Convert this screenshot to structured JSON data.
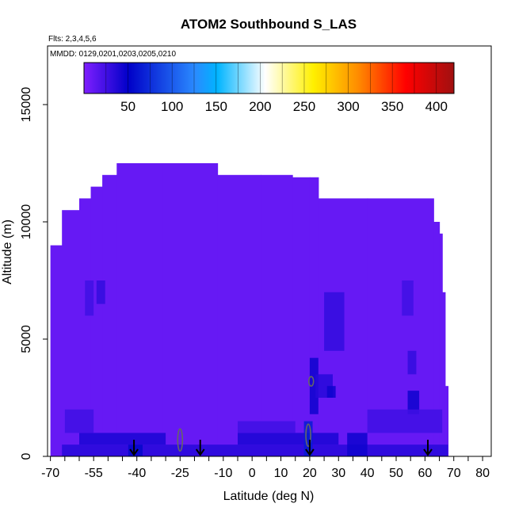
{
  "chart_data": {
    "type": "heatmap",
    "title": "ATOM2 Southbound S_LAS",
    "flights_label": "Flts: 2,3,4,5,6",
    "dates_label": "MMDD: 0129,0201,0203,0205,0210",
    "xlabel": "Latitude (deg N)",
    "ylabel": "Altitude (m)",
    "xlim": [
      -71,
      83
    ],
    "ylim": [
      0,
      17500
    ],
    "x_ticks": [
      -70,
      -55,
      -40,
      -25,
      -10,
      0,
      10,
      20,
      30,
      40,
      50,
      60,
      70,
      80
    ],
    "y_ticks": [
      0,
      5000,
      10000,
      15000
    ],
    "colorbar": {
      "range": [
        0,
        420
      ],
      "ticks": [
        50,
        100,
        150,
        200,
        250,
        300,
        350,
        400
      ],
      "colors": [
        "#7f1fff",
        "#0000c8",
        "#2a8aff",
        "#00b4ff",
        "#ffffff",
        "#fff000",
        "#ff8c00",
        "#ff0000",
        "#a01010"
      ],
      "color_stops": [
        0,
        0.12,
        0.3,
        0.36,
        0.49,
        0.62,
        0.74,
        0.87,
        1
      ]
    },
    "background_value": 10,
    "columns": [
      {
        "lat_range": [
          -70,
          -66
        ],
        "top_alt": 9000
      },
      {
        "lat_range": [
          -66,
          -60
        ],
        "top_alt": 10500
      },
      {
        "lat_range": [
          -60,
          -56
        ],
        "top_alt": 11000
      },
      {
        "lat_range": [
          -56,
          -52
        ],
        "top_alt": 11500
      },
      {
        "lat_range": [
          -52,
          -47
        ],
        "top_alt": 12000
      },
      {
        "lat_range": [
          -47,
          -31
        ],
        "top_alt": 12500
      },
      {
        "lat_range": [
          -31,
          -12
        ],
        "top_alt": 12500
      },
      {
        "lat_range": [
          -12,
          3
        ],
        "top_alt": 12000
      },
      {
        "lat_range": [
          3,
          14
        ],
        "top_alt": 12000
      },
      {
        "lat_range": [
          14,
          20
        ],
        "top_alt": 11900
      },
      {
        "lat_range": [
          20,
          23
        ],
        "top_alt": 11900
      },
      {
        "lat_range": [
          23,
          40
        ],
        "top_alt": 11000
      },
      {
        "lat_range": [
          40,
          63
        ],
        "top_alt": 11000
      },
      {
        "lat_range": [
          63,
          65
        ],
        "top_alt": 10000
      },
      {
        "lat_range": [
          65,
          66
        ],
        "top_alt": 9500
      },
      {
        "lat_range": [
          66,
          67
        ],
        "top_alt": 7000
      },
      {
        "lat_range": [
          67,
          68
        ],
        "top_alt": 3000
      }
    ],
    "features": [
      {
        "lat_range": [
          -66,
          68
        ],
        "alt_range": [
          0,
          500
        ],
        "value": 35
      },
      {
        "lat_range": [
          -60,
          -30
        ],
        "alt_range": [
          500,
          1000
        ],
        "value": 40
      },
      {
        "lat_range": [
          -5,
          30
        ],
        "alt_range": [
          500,
          1000
        ],
        "value": 40
      },
      {
        "lat_range": [
          33,
          40
        ],
        "alt_range": [
          0,
          1000
        ],
        "value": 45
      },
      {
        "lat_range": [
          18,
          21
        ],
        "alt_range": [
          0,
          1500
        ],
        "value": 65
      },
      {
        "lat_range": [
          -43,
          -38
        ],
        "alt_range": [
          0,
          500
        ],
        "value": 55
      },
      {
        "lat_range": [
          -58,
          -55
        ],
        "alt_range": [
          6000,
          7500
        ],
        "value": 25
      },
      {
        "lat_range": [
          -54,
          -51
        ],
        "alt_range": [
          6500,
          7500
        ],
        "value": 30
      },
      {
        "lat_range": [
          20,
          23
        ],
        "alt_range": [
          1800,
          4200
        ],
        "value": 45
      },
      {
        "lat_range": [
          22,
          28
        ],
        "alt_range": [
          2500,
          3500
        ],
        "value": 35
      },
      {
        "lat_range": [
          25,
          32
        ],
        "alt_range": [
          4500,
          7000
        ],
        "value": 30
      },
      {
        "lat_range": [
          26,
          29
        ],
        "alt_range": [
          2500,
          3000
        ],
        "value": 45
      },
      {
        "lat_range": [
          54,
          58
        ],
        "alt_range": [
          1800,
          2800
        ],
        "value": 45
      },
      {
        "lat_range": [
          54,
          57
        ],
        "alt_range": [
          3500,
          4500
        ],
        "value": 30
      },
      {
        "lat_range": [
          52,
          56
        ],
        "alt_range": [
          6000,
          7500
        ],
        "value": 25
      },
      {
        "lat_range": [
          -65,
          -55
        ],
        "alt_range": [
          1000,
          2000
        ],
        "value": 25
      },
      {
        "lat_range": [
          40,
          66
        ],
        "alt_range": [
          1000,
          2000
        ],
        "value": 25
      },
      {
        "lat_range": [
          -5,
          15
        ],
        "alt_range": [
          1000,
          1500
        ],
        "value": 25
      }
    ],
    "contours": [
      {
        "lat": 19.5,
        "alt": 900,
        "value": 100
      },
      {
        "lat": 20.5,
        "alt": 3200,
        "value": 100
      },
      {
        "lat": -25,
        "alt": 700,
        "value": 100
      }
    ],
    "arrows_lat": [
      -41,
      -18,
      20,
      61
    ]
  }
}
